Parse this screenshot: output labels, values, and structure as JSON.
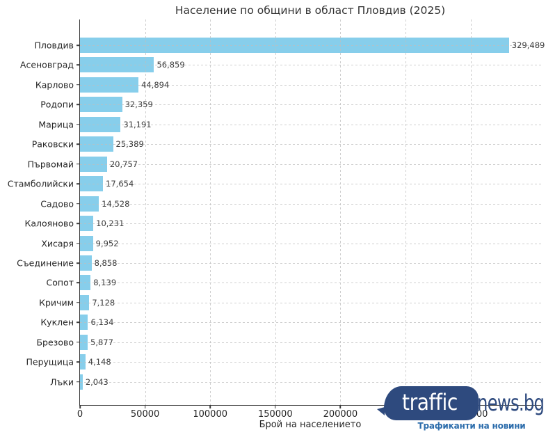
{
  "chart_data": {
    "type": "bar",
    "orientation": "horizontal",
    "title": "Население по общини в област Пловдив (2025)",
    "xlabel": "Брой на населението",
    "ylabel": "",
    "categories": [
      "Пловдив",
      "Асеновград",
      "Карлово",
      "Родопи",
      "Марица",
      "Раковски",
      "Първомай",
      "Стамболийски",
      "Садово",
      "Калояново",
      "Хисаря",
      "Съединение",
      "Сопот",
      "Кричим",
      "Куклен",
      "Брезово",
      "Перущица",
      "Лъки"
    ],
    "values": [
      329489,
      56859,
      44894,
      32359,
      31191,
      25389,
      20757,
      17654,
      14528,
      10231,
      9952,
      8858,
      8139,
      7128,
      6134,
      5877,
      4148,
      2043
    ],
    "value_labels": [
      "329,489",
      "56,859",
      "44,894",
      "32,359",
      "31,191",
      "25,389",
      "20,757",
      "17,654",
      "14,528",
      "10,231",
      "9,952",
      "8,858",
      "8,139",
      "7,128",
      "6,134",
      "5,877",
      "4,148",
      "2,043"
    ],
    "xlim": [
      0,
      354700
    ],
    "x_ticks": [
      0,
      50000,
      100000,
      150000,
      200000,
      250000,
      300000
    ],
    "x_tick_labels": [
      "0",
      "50000",
      "100000",
      "150000",
      "200000",
      "250000",
      "300000"
    ],
    "grid": true,
    "grid_style": "dashed",
    "legend": "none",
    "bar_color": "#87CEEB",
    "axis_color": "#3a3a3a",
    "grid_color": "#bebebe"
  },
  "logo": {
    "bubble_text": "traffic",
    "suffix_text": "news.bg",
    "tagline": "Трафиканти на новини",
    "bubble_color": "#2e4a7e",
    "suffix_color": "#2e4a7e",
    "tagline_color": "#2b6cab"
  }
}
